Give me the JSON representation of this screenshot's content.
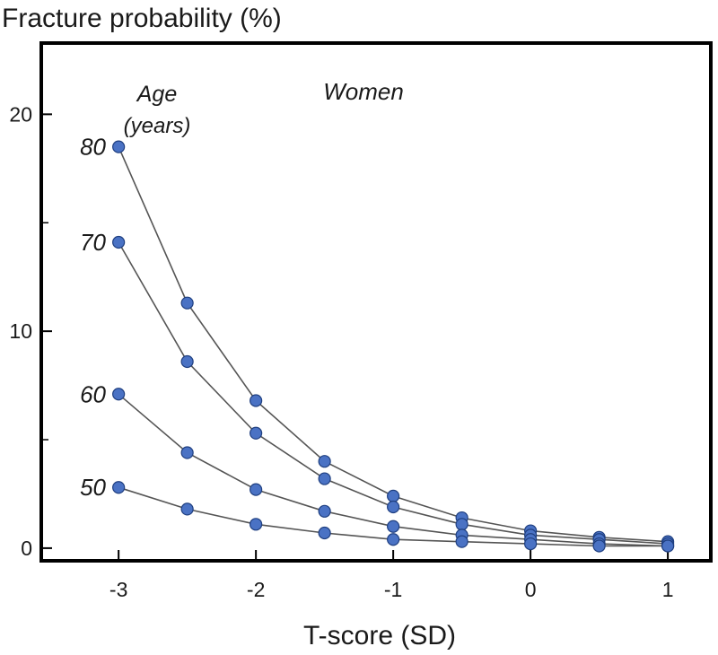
{
  "chart_data": {
    "type": "line",
    "title": "",
    "ylabel": "Fracture probability (%)",
    "xlabel": "T-score (SD)",
    "x": [
      -3,
      -2.5,
      -2,
      -1.5,
      -1,
      -0.5,
      0,
      0.5,
      1
    ],
    "xlim": [
      -3.55,
      1.3
    ],
    "ylim": [
      -0.5,
      23.2
    ],
    "x_ticks": [
      -3,
      -2,
      -1,
      0,
      1
    ],
    "x_tick_labels": [
      "-3",
      "-2",
      "-1",
      "0",
      "1"
    ],
    "y_ticks_major": [
      0,
      10,
      20
    ],
    "y_tick_labels": [
      "0",
      "10",
      "20"
    ],
    "y_ticks_minor": [
      5,
      15
    ],
    "grid": false,
    "legend": "none",
    "series": [
      {
        "name": "80",
        "values": [
          18.5,
          11.3,
          6.8,
          4.0,
          2.4,
          1.4,
          0.8,
          0.5,
          0.3
        ]
      },
      {
        "name": "70",
        "values": [
          14.1,
          8.6,
          5.3,
          3.2,
          1.9,
          1.1,
          0.6,
          0.4,
          0.2
        ]
      },
      {
        "name": "60",
        "values": [
          7.1,
          4.4,
          2.7,
          1.7,
          1.0,
          0.6,
          0.4,
          0.2,
          0.1
        ]
      },
      {
        "name": "50",
        "values": [
          2.8,
          1.8,
          1.1,
          0.7,
          0.4,
          0.3,
          0.2,
          0.1,
          0.1
        ]
      }
    ],
    "annotations": {
      "age_label": "Age",
      "age_units": "(years)",
      "sex_label": "Women"
    },
    "colors": {
      "marker_fill": "#4a72c4",
      "marker_stroke": "#1f3f80",
      "line": "#555555",
      "frame": "#000000"
    }
  }
}
